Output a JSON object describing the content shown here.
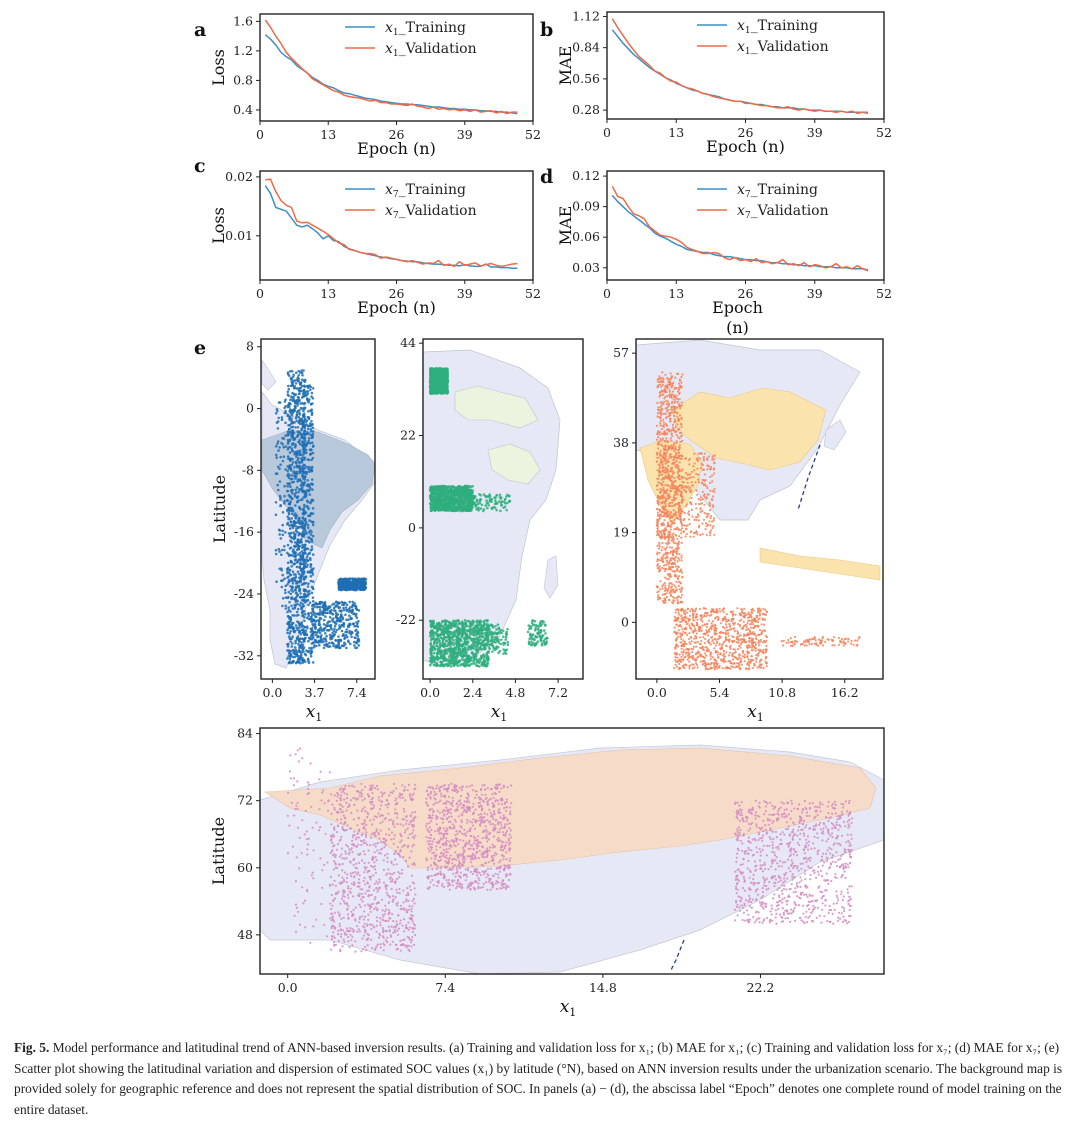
{
  "figure": {
    "caption_label": "Fig. 5.",
    "caption_text": "Model performance and latitudinal trend of ANN-based inversion results. (a) Training and validation loss for x₁; (b) MAE for x₁; (c) Training and validation loss for x₇; (d) MAE for x₇; (e) Scatter plot showing the latitudinal variation and dispersion of estimated SOC values (x₁) by latitude (°N), based on ANN inversion results under the urbanization scenario. The background map is provided solely for geographic reference and does not represent the spatial distribution of SOC. In panels (a) − (d), the abscissa label “Epoch” denotes one complete round of model training on the entire dataset."
  },
  "colors": {
    "training": "#3f8fc4",
    "validation": "#ef6a45",
    "samerica_points": "#1f6fb4",
    "africa_points": "#2fae7e",
    "asia_points": "#f4845c",
    "eurasia_points": "#d48cc2",
    "map_land": "#e6e9f5",
    "map_highlight_sa": "#b9c9dc",
    "map_highlight_africa": "#ecf3df",
    "map_highlight_asia": "#fbe3ad",
    "map_highlight_russia": "#f6dcc8"
  },
  "chart_data": [
    {
      "id": "a",
      "type": "line",
      "panel_label": "a",
      "xlabel": "Epoch (n)",
      "ylabel": "Loss",
      "xlim": [
        0,
        52
      ],
      "ylim": [
        0.25,
        1.7
      ],
      "xticks": [
        0,
        13,
        26,
        39,
        52
      ],
      "yticks": [
        0.4,
        0.8,
        1.2,
        1.6
      ],
      "ytick_labels": [
        "0.4",
        "0.8",
        "1.2",
        "1.6"
      ],
      "legend": [
        "x",
        "1",
        "_Training",
        "_Validation"
      ],
      "series": [
        {
          "name": "x1_Training",
          "values": [
            1.42,
            1.36,
            1.28,
            1.18,
            1.12,
            1.08,
            1.0,
            0.95,
            0.9,
            0.84,
            0.8,
            0.75,
            0.72,
            0.7,
            0.66,
            0.63,
            0.62,
            0.6,
            0.58,
            0.56,
            0.55,
            0.54,
            0.52,
            0.51,
            0.5,
            0.49,
            0.48,
            0.48,
            0.47,
            0.47,
            0.46,
            0.45,
            0.44,
            0.44,
            0.43,
            0.42,
            0.42,
            0.41,
            0.41,
            0.4,
            0.4,
            0.39,
            0.39,
            0.38,
            0.38,
            0.37,
            0.37,
            0.36,
            0.35
          ]
        },
        {
          "name": "x1_Validation",
          "values": [
            1.62,
            1.52,
            1.4,
            1.3,
            1.18,
            1.1,
            1.03,
            0.96,
            0.9,
            0.82,
            0.78,
            0.74,
            0.7,
            0.66,
            0.64,
            0.6,
            0.58,
            0.57,
            0.56,
            0.54,
            0.52,
            0.53,
            0.5,
            0.5,
            0.48,
            0.48,
            0.47,
            0.46,
            0.48,
            0.45,
            0.44,
            0.42,
            0.44,
            0.41,
            0.42,
            0.4,
            0.41,
            0.39,
            0.4,
            0.38,
            0.4,
            0.37,
            0.38,
            0.39,
            0.36,
            0.38,
            0.35,
            0.37,
            0.37
          ]
        }
      ]
    },
    {
      "id": "b",
      "type": "line",
      "panel_label": "b",
      "xlabel": "Epoch (n)",
      "ylabel": "MAE",
      "xlim": [
        0,
        52
      ],
      "ylim": [
        0.2,
        1.16
      ],
      "xticks": [
        0,
        13,
        26,
        39,
        52
      ],
      "yticks": [
        0.28,
        0.56,
        0.84,
        1.12
      ],
      "ytick_labels": [
        "0.28",
        "0.56",
        "0.84",
        "1.12"
      ],
      "legend": [
        "x",
        "1",
        "_Training",
        "_Validation"
      ],
      "series": [
        {
          "name": "x1_Training",
          "values": [
            1.0,
            0.94,
            0.88,
            0.83,
            0.78,
            0.74,
            0.7,
            0.66,
            0.63,
            0.6,
            0.57,
            0.55,
            0.52,
            0.5,
            0.48,
            0.46,
            0.45,
            0.43,
            0.42,
            0.41,
            0.4,
            0.38,
            0.37,
            0.36,
            0.36,
            0.35,
            0.34,
            0.33,
            0.33,
            0.32,
            0.31,
            0.31,
            0.3,
            0.3,
            0.3,
            0.29,
            0.29,
            0.28,
            0.28,
            0.28,
            0.27,
            0.27,
            0.27,
            0.27,
            0.26,
            0.26,
            0.26,
            0.26,
            0.25
          ]
        },
        {
          "name": "x1_Validation",
          "values": [
            1.1,
            1.02,
            0.95,
            0.88,
            0.82,
            0.76,
            0.72,
            0.68,
            0.63,
            0.61,
            0.57,
            0.54,
            0.53,
            0.5,
            0.48,
            0.47,
            0.45,
            0.43,
            0.42,
            0.4,
            0.39,
            0.38,
            0.37,
            0.36,
            0.36,
            0.34,
            0.34,
            0.33,
            0.32,
            0.32,
            0.31,
            0.3,
            0.3,
            0.31,
            0.29,
            0.28,
            0.29,
            0.28,
            0.27,
            0.28,
            0.27,
            0.27,
            0.26,
            0.27,
            0.26,
            0.27,
            0.25,
            0.26,
            0.26
          ]
        }
      ]
    },
    {
      "id": "c",
      "type": "line",
      "panel_label": "c",
      "xlabel": "Epoch (n)",
      "ylabel": "Loss",
      "xlim": [
        0,
        52
      ],
      "ylim": [
        0.0025,
        0.021
      ],
      "xticks": [
        0,
        13,
        26,
        39,
        52
      ],
      "yticks": [
        0.01,
        0.02
      ],
      "ytick_labels": [
        "0.01",
        "0.02"
      ],
      "legend": [
        "x",
        "7",
        "_Training",
        "_Validation"
      ],
      "series": [
        {
          "name": "x7_Training",
          "values": [
            0.0185,
            0.0172,
            0.0148,
            0.0145,
            0.0142,
            0.013,
            0.0118,
            0.0115,
            0.0118,
            0.0112,
            0.0105,
            0.0095,
            0.01,
            0.0092,
            0.009,
            0.0082,
            0.0078,
            0.0075,
            0.0072,
            0.007,
            0.0068,
            0.0066,
            0.0064,
            0.0063,
            0.0061,
            0.006,
            0.0058,
            0.0057,
            0.0056,
            0.0056,
            0.0054,
            0.0053,
            0.0052,
            0.0052,
            0.0051,
            0.005,
            0.005,
            0.0049,
            0.0051,
            0.0049,
            0.0048,
            0.0048,
            0.0052,
            0.0047,
            0.0047,
            0.0046,
            0.0046,
            0.0045,
            0.0045
          ]
        },
        {
          "name": "x7_Validation",
          "values": [
            0.0195,
            0.0196,
            0.0175,
            0.016,
            0.0152,
            0.0148,
            0.0125,
            0.0122,
            0.0123,
            0.0118,
            0.0113,
            0.0108,
            0.0102,
            0.0095,
            0.0088,
            0.0085,
            0.0077,
            0.0075,
            0.0072,
            0.007,
            0.007,
            0.0068,
            0.0062,
            0.0064,
            0.0062,
            0.006,
            0.0058,
            0.0056,
            0.0058,
            0.0055,
            0.0052,
            0.0054,
            0.0053,
            0.0058,
            0.005,
            0.0052,
            0.0048,
            0.0056,
            0.005,
            0.0052,
            0.0054,
            0.0049,
            0.0051,
            0.0053,
            0.005,
            0.0048,
            0.005,
            0.0052,
            0.0053
          ]
        }
      ]
    },
    {
      "id": "d",
      "type": "line",
      "panel_label": "d",
      "xlabel": "Epoch",
      "xlabel_unit": "(n)",
      "ylabel": "MAE",
      "xlim": [
        0,
        52
      ],
      "ylim": [
        0.018,
        0.125
      ],
      "xticks": [
        0,
        13,
        26,
        39,
        52
      ],
      "yticks": [
        0.03,
        0.06,
        0.09,
        0.12
      ],
      "ytick_labels": [
        "0.03",
        "0.06",
        "0.09",
        "0.12"
      ],
      "legend": [
        "x",
        "7",
        "_Training",
        "_Validation"
      ],
      "series": [
        {
          "name": "x7_Training",
          "values": [
            0.101,
            0.095,
            0.09,
            0.085,
            0.081,
            0.077,
            0.073,
            0.069,
            0.064,
            0.061,
            0.059,
            0.056,
            0.053,
            0.051,
            0.048,
            0.047,
            0.046,
            0.045,
            0.045,
            0.043,
            0.042,
            0.041,
            0.041,
            0.04,
            0.039,
            0.038,
            0.038,
            0.037,
            0.037,
            0.036,
            0.035,
            0.035,
            0.034,
            0.034,
            0.033,
            0.033,
            0.032,
            0.032,
            0.032,
            0.031,
            0.031,
            0.031,
            0.03,
            0.03,
            0.03,
            0.029,
            0.029,
            0.029,
            0.028
          ]
        },
        {
          "name": "x7_Validation",
          "values": [
            0.11,
            0.1,
            0.098,
            0.09,
            0.083,
            0.081,
            0.078,
            0.07,
            0.066,
            0.062,
            0.061,
            0.06,
            0.058,
            0.055,
            0.05,
            0.048,
            0.046,
            0.044,
            0.044,
            0.045,
            0.044,
            0.04,
            0.038,
            0.04,
            0.037,
            0.038,
            0.036,
            0.039,
            0.035,
            0.036,
            0.034,
            0.035,
            0.038,
            0.033,
            0.034,
            0.032,
            0.035,
            0.031,
            0.033,
            0.032,
            0.03,
            0.031,
            0.034,
            0.03,
            0.031,
            0.029,
            0.032,
            0.029,
            0.027
          ]
        }
      ]
    },
    {
      "id": "e1",
      "type": "scatter",
      "panel_label": "e",
      "region": "South America",
      "xlabel": "x",
      "xlabel_sub": "1",
      "ylabel": "Latitude",
      "xlim": [
        -1.0,
        9.0
      ],
      "ylim": [
        -35,
        9
      ],
      "xticks": [
        0.0,
        3.7,
        7.4
      ],
      "xtick_labels": [
        "0.0",
        "3.7",
        "7.4"
      ],
      "yticks": [
        8,
        0,
        -8,
        -16,
        -24,
        -32
      ],
      "ytick_labels": [
        "8",
        "0",
        "-8",
        "-16",
        "-24",
        "-32"
      ],
      "clusters": [
        {
          "x": [
            1.3,
            2.9
          ],
          "lat": [
            -33,
            5
          ],
          "density": "high"
        },
        {
          "x": [
            2.6,
            3.6
          ],
          "lat": [
            -33,
            3
          ],
          "density": "medium"
        },
        {
          "x": [
            0.3,
            1.2
          ],
          "lat": [
            -26,
            2
          ],
          "density": "low"
        },
        {
          "x": [
            3.4,
            7.6
          ],
          "lat": [
            -31,
            -25
          ],
          "density": "medium"
        },
        {
          "x": [
            5.8,
            8.2
          ],
          "lat": [
            -23.5,
            -22
          ],
          "density": "medium"
        }
      ]
    },
    {
      "id": "e2",
      "type": "scatter",
      "panel_label": "",
      "region": "Africa",
      "xlabel": "x",
      "xlabel_sub": "1",
      "ylabel": "",
      "xlim": [
        -0.4,
        8.6
      ],
      "ylim": [
        -36,
        45
      ],
      "xticks": [
        0.0,
        2.4,
        4.8,
        7.2
      ],
      "xtick_labels": [
        "0.0",
        "2.4",
        "4.8",
        "7.2"
      ],
      "yticks": [
        44,
        22,
        0,
        -22
      ],
      "ytick_labels": [
        "44",
        "22",
        "0",
        "-22"
      ],
      "clusters": [
        {
          "x": [
            0.0,
            1.0
          ],
          "lat": [
            32,
            38
          ],
          "density": "high"
        },
        {
          "x": [
            0.0,
            2.4
          ],
          "lat": [
            4,
            10
          ],
          "density": "high"
        },
        {
          "x": [
            2.4,
            4.5
          ],
          "lat": [
            4,
            8
          ],
          "density": "low"
        },
        {
          "x": [
            0.0,
            3.3
          ],
          "lat": [
            -33,
            -22
          ],
          "density": "high"
        },
        {
          "x": [
            3.3,
            4.4
          ],
          "lat": [
            -30,
            -23
          ],
          "density": "low"
        },
        {
          "x": [
            5.5,
            6.6
          ],
          "lat": [
            -28,
            -22
          ],
          "density": "low"
        }
      ]
    },
    {
      "id": "e3",
      "type": "scatter",
      "panel_label": "",
      "region": "South and East Asia",
      "xlabel": "x",
      "xlabel_sub": "1",
      "ylabel": "",
      "xlim": [
        -1.8,
        19.5
      ],
      "ylim": [
        -12,
        60
      ],
      "xticks": [
        0.0,
        5.4,
        10.8,
        16.2
      ],
      "xtick_labels": [
        "0.0",
        "5.4",
        "10.8",
        "16.2"
      ],
      "yticks": [
        57,
        38,
        19,
        0
      ],
      "ytick_labels": [
        "57",
        "38",
        "19",
        "0"
      ],
      "clusters": [
        {
          "x": [
            0.0,
            2.2
          ],
          "lat": [
            4,
            53
          ],
          "density": "high"
        },
        {
          "x": [
            0.0,
            5.0
          ],
          "lat": [
            18,
            36
          ],
          "density": "medium"
        },
        {
          "x": [
            1.5,
            9.5
          ],
          "lat": [
            -10,
            3
          ],
          "density": "high"
        },
        {
          "x": [
            10.5,
            17.5
          ],
          "lat": [
            -5,
            -3
          ],
          "density": "low"
        }
      ]
    },
    {
      "id": "e4",
      "type": "scatter",
      "panel_label": "",
      "region": "Northern Eurasia",
      "xlabel": "x",
      "xlabel_sub": "1",
      "ylabel": "Latitude",
      "xlim": [
        -1.3,
        28.0
      ],
      "ylim": [
        41,
        85
      ],
      "xticks": [
        0.0,
        7.4,
        14.8,
        22.2
      ],
      "xtick_labels": [
        "0.0",
        "7.4",
        "14.8",
        "22.2"
      ],
      "yticks": [
        84,
        72,
        60,
        48
      ],
      "ytick_labels": [
        "84",
        "72",
        "60",
        "48"
      ],
      "clusters": [
        {
          "x": [
            2.0,
            6.0
          ],
          "lat": [
            45,
            75
          ],
          "density": "high"
        },
        {
          "x": [
            6.5,
            10.5
          ],
          "lat": [
            56,
            75
          ],
          "density": "high"
        },
        {
          "x": [
            21.0,
            26.5
          ],
          "lat": [
            50,
            72
          ],
          "density": "high"
        },
        {
          "x": [
            0.0,
            2.0
          ],
          "lat": [
            45,
            82
          ],
          "density": "low"
        }
      ]
    }
  ]
}
